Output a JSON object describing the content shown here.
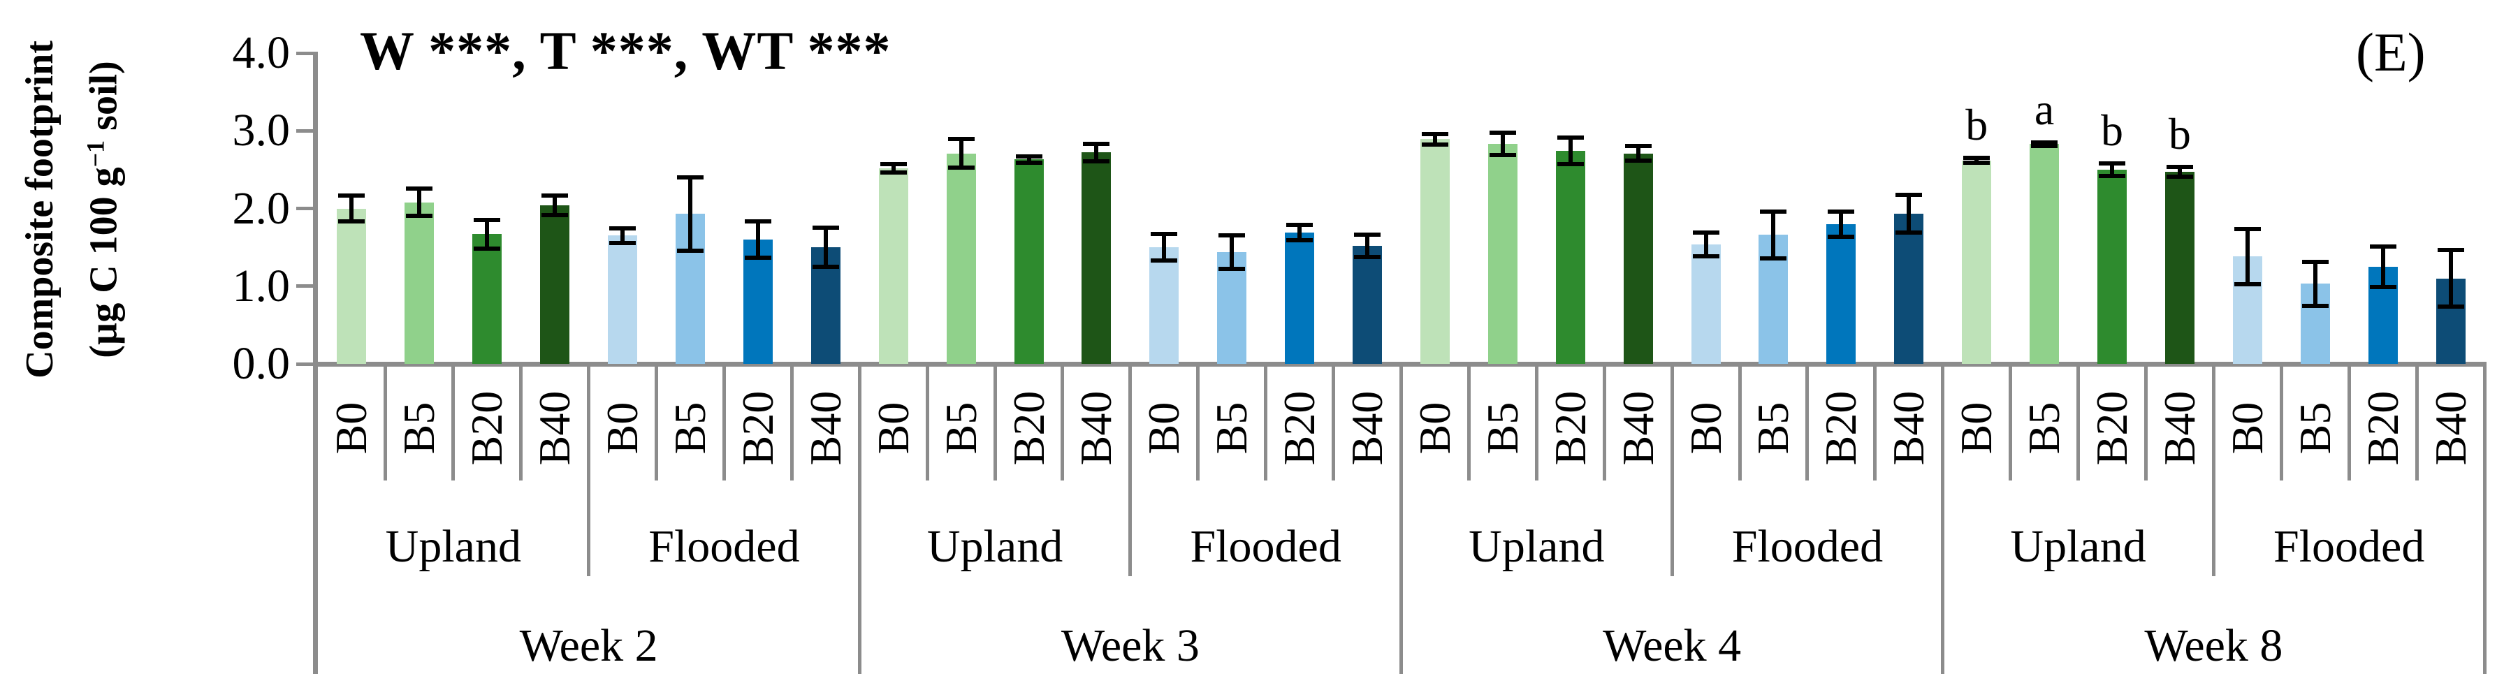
{
  "chart_data": {
    "type": "bar",
    "panel_label": "(E)",
    "annotation": "W ***, T ***, WT ***",
    "ylabel_line1": "Composite footprint",
    "ylabel_line2_pre": "(µg C 100 g",
    "ylabel_sup": "−1",
    "ylabel_line2_post": " soil)",
    "ylim": [
      0.0,
      4.0
    ],
    "ytick_values": [
      4.0,
      3.0,
      2.0,
      1.0,
      0.0
    ],
    "ytick_labels": [
      "4.0",
      "3.0",
      "2.0",
      "1.0",
      "0.0"
    ],
    "grid": false,
    "legend": "none",
    "categories": [
      "B0",
      "B5",
      "B20",
      "B40"
    ],
    "treatments": [
      "Upland",
      "Flooded"
    ],
    "weeks": [
      "Week 2",
      "Week 3",
      "Week 4",
      "Week 8"
    ],
    "upland_colors": [
      "#BEE2B8",
      "#90D18B",
      "#2E8B2E",
      "#1E5517"
    ],
    "flooded_colors": [
      "#B7D8EE",
      "#8BC3E8",
      "#0076BC",
      "#0D4C76"
    ],
    "axis_color": "#8C8C8C",
    "error_bar_color": "#000000",
    "groups": [
      {
        "week": "Week 2",
        "treatments": [
          {
            "name": "Upland",
            "values": [
              2.0,
              2.08,
              1.67,
              2.04
            ],
            "errors": [
              0.19,
              0.2,
              0.21,
              0.15
            ],
            "letters": null
          },
          {
            "name": "Flooded",
            "values": [
              1.65,
              1.93,
              1.6,
              1.5
            ],
            "errors": [
              0.12,
              0.5,
              0.26,
              0.28
            ],
            "letters": null
          }
        ]
      },
      {
        "week": "Week 3",
        "treatments": [
          {
            "name": "Upland",
            "values": [
              2.52,
              2.71,
              2.63,
              2.72
            ],
            "errors": [
              0.08,
              0.21,
              0.07,
              0.14
            ],
            "letters": null
          },
          {
            "name": "Flooded",
            "values": [
              1.5,
              1.44,
              1.69,
              1.52
            ],
            "errors": [
              0.2,
              0.24,
              0.13,
              0.17
            ],
            "letters": null
          }
        ]
      },
      {
        "week": "Week 4",
        "treatments": [
          {
            "name": "Upland",
            "values": [
              2.89,
              2.83,
              2.74,
              2.71
            ],
            "errors": [
              0.09,
              0.17,
              0.2,
              0.12
            ],
            "letters": null
          },
          {
            "name": "Flooded",
            "values": [
              1.54,
              1.66,
              1.8,
              1.93
            ],
            "errors": [
              0.18,
              0.33,
              0.19,
              0.27
            ],
            "letters": null
          }
        ]
      },
      {
        "week": "Week 8",
        "treatments": [
          {
            "name": "Upland",
            "values": [
              2.62,
              2.83,
              2.5,
              2.47
            ],
            "errors": [
              0.06,
              0.05,
              0.11,
              0.09
            ],
            "letters": [
              "b",
              "a",
              "b",
              "b"
            ]
          },
          {
            "name": "Flooded",
            "values": [
              1.38,
              1.03,
              1.25,
              1.1
            ],
            "errors": [
              0.38,
              0.31,
              0.29,
              0.39
            ],
            "letters": null
          }
        ]
      }
    ]
  }
}
